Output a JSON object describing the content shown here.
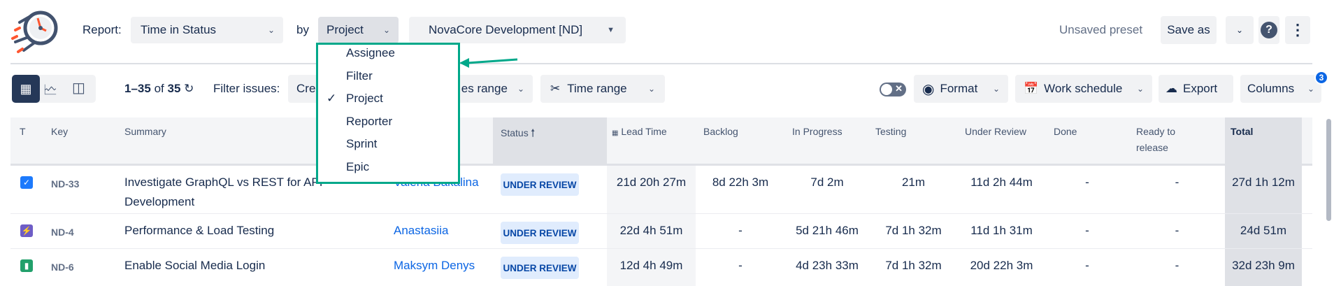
{
  "header": {
    "report_label": "Report:",
    "report_value": "Time in Status",
    "by_label": "by",
    "group_value": "Project",
    "project_value": "NovaCore Development [ND]",
    "unsaved": "Unsaved preset",
    "save_as": "Save as"
  },
  "dropdown": {
    "items": [
      {
        "label": "Assignee"
      },
      {
        "label": "Filter"
      },
      {
        "label": "Project",
        "selected": true
      },
      {
        "label": "Reporter"
      },
      {
        "label": "Sprint"
      },
      {
        "label": "Epic"
      }
    ],
    "highlight_color": "#00a88a"
  },
  "toolbar": {
    "count_range": "1–35",
    "count_of": "of",
    "count_total": "35",
    "filter_label": "Filter issues:",
    "filter1_visible": "Cre",
    "filter2_visible": "es range",
    "time_range": "Time range",
    "format": "Format",
    "work_schedule": "Work schedule",
    "export": "Export",
    "columns": "Columns",
    "columns_badge": "3"
  },
  "table": {
    "headers": {
      "type": "T",
      "key": "Key",
      "summary": "Summary",
      "status": "Status",
      "lead_time": "Lead Time",
      "backlog": "Backlog",
      "in_progress": "In Progress",
      "testing": "Testing",
      "under_review": "Under Review",
      "done": "Done",
      "ready1": "Ready to",
      "ready2": "release",
      "total": "Total"
    },
    "rows": [
      {
        "type": "task",
        "key": "ND-33",
        "summary1": "Investigate GraphQL vs REST for API",
        "summary2": "Development",
        "assignee": "Valeria Bakalina",
        "status": "UNDER REVIEW",
        "lead_time": "21d 20h 27m",
        "backlog": "8d 22h 3m",
        "in_progress": "7d 2m",
        "testing": "21m",
        "under_review": "11d 2h 44m",
        "done": "-",
        "ready": "-",
        "total": "27d 1h 12m"
      },
      {
        "type": "epic",
        "key": "ND-4",
        "summary1": "Performance & Load Testing",
        "summary2": "",
        "assignee": "Anastasiia",
        "status": "UNDER REVIEW",
        "lead_time": "22d 4h 51m",
        "backlog": "-",
        "in_progress": "5d 21h 46m",
        "testing": "7d 1h 32m",
        "under_review": "11d 1h 31m",
        "done": "-",
        "ready": "-",
        "total": "24d 51m"
      },
      {
        "type": "story",
        "key": "ND-6",
        "summary1": "Enable Social Media Login",
        "summary2": "",
        "assignee": "Maksym Denys",
        "status": "UNDER REVIEW",
        "lead_time": "12d 4h 49m",
        "backlog": "-",
        "in_progress": "4d 23h 33m",
        "testing": "7d 1h 32m",
        "under_review": "20d 22h 3m",
        "done": "-",
        "ready": "-",
        "total": "32d 23h 9m"
      }
    ]
  }
}
